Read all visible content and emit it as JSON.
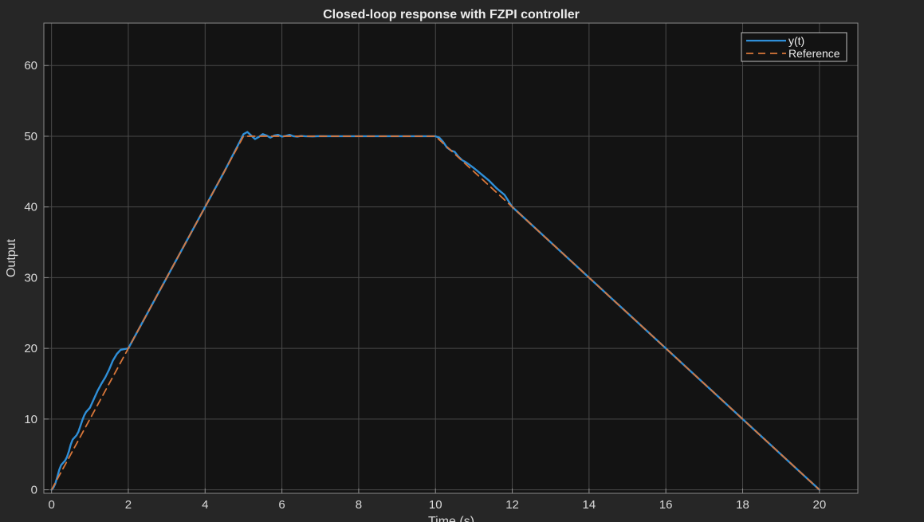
{
  "chart_data": {
    "type": "line",
    "title": "Closed-loop response with FZPI controller",
    "xlabel": "Time (s)",
    "ylabel": "Output",
    "xlim": [
      -0.2,
      21
    ],
    "ylim": [
      -0.5,
      66
    ],
    "x_ticks": [
      0,
      2,
      4,
      6,
      8,
      10,
      12,
      14,
      16,
      18,
      20
    ],
    "y_ticks": [
      0,
      10,
      20,
      30,
      40,
      50,
      60
    ],
    "grid": true,
    "legend_position": "top-right",
    "background_color": "#262626",
    "axes_color": "#131313",
    "grid_color": "#4a4a4a",
    "series": [
      {
        "name": "y(t)",
        "color": "#2f8fd8",
        "style": "solid",
        "x": [
          0,
          0.05,
          0.1,
          0.15,
          0.2,
          0.25,
          0.3,
          0.35,
          0.4,
          0.45,
          0.5,
          0.55,
          0.6,
          0.65,
          0.7,
          0.75,
          0.8,
          0.85,
          0.9,
          0.95,
          1.0,
          1.1,
          1.2,
          1.3,
          1.4,
          1.5,
          1.6,
          1.7,
          1.8,
          2.0,
          2.5,
          3.0,
          3.5,
          4.0,
          4.5,
          4.9,
          5.0,
          5.1,
          5.2,
          5.3,
          5.4,
          5.5,
          5.6,
          5.7,
          5.8,
          5.9,
          6.0,
          6.1,
          6.2,
          6.3,
          6.4,
          6.5,
          6.6,
          6.8,
          7.0,
          7.3,
          7.6,
          8.0,
          9.0,
          9.95,
          10.0,
          10.1,
          10.2,
          10.3,
          10.4,
          10.5,
          10.6,
          10.7,
          10.8,
          10.9,
          11.0,
          11.2,
          11.4,
          11.6,
          11.8,
          12.0,
          13.0,
          14.0,
          15.0,
          16.0,
          17.0,
          18.0,
          19.0,
          20.0
        ],
        "values": [
          0,
          0.3,
          0.9,
          1.8,
          2.8,
          3.5,
          3.8,
          4.1,
          4.6,
          5.4,
          6.4,
          7.1,
          7.4,
          7.7,
          8.2,
          9.0,
          9.8,
          10.5,
          11.0,
          11.3,
          11.6,
          12.8,
          14.0,
          15.0,
          15.9,
          17.0,
          18.3,
          19.2,
          19.8,
          20.0,
          25.0,
          30.0,
          35.0,
          40.0,
          45.0,
          49.2,
          50.3,
          50.6,
          50.1,
          49.6,
          49.9,
          50.3,
          50.1,
          49.8,
          50.1,
          50.2,
          49.95,
          50.05,
          50.2,
          50.0,
          49.95,
          50.05,
          50.0,
          49.98,
          50.02,
          50.0,
          50.0,
          50.0,
          50.0,
          50.0,
          50.0,
          49.8,
          49.2,
          48.4,
          48.0,
          47.8,
          47.1,
          46.6,
          46.3,
          45.9,
          45.5,
          44.6,
          43.7,
          42.6,
          41.7,
          40.0,
          35.0,
          30.0,
          25.0,
          20.0,
          15.0,
          10.0,
          5.0,
          0.0
        ]
      },
      {
        "name": "Reference",
        "color": "#d9773a",
        "style": "dashed",
        "x": [
          0,
          5,
          10,
          20
        ],
        "values": [
          0,
          50,
          50,
          0
        ]
      }
    ]
  }
}
